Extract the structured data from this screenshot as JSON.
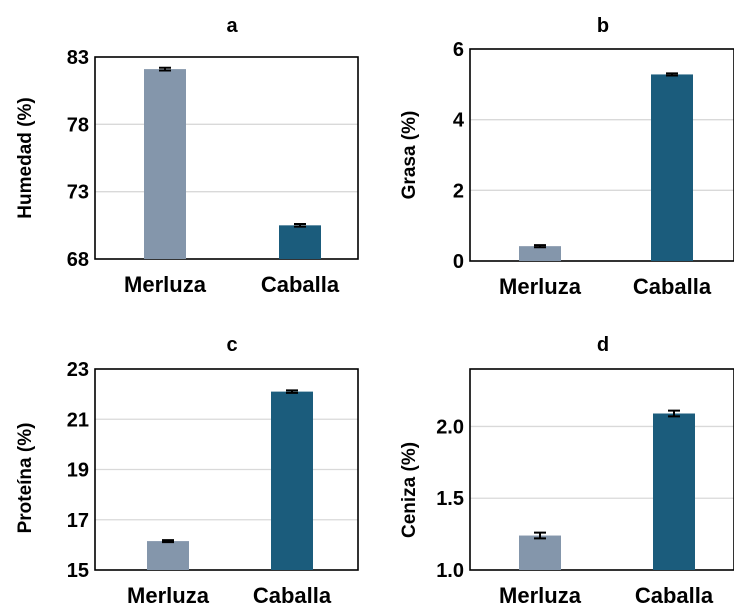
{
  "chart_data": [
    {
      "panel": "a",
      "type": "bar",
      "title": "a",
      "ylabel": "Humedad (%)",
      "xlabel": "",
      "categories": [
        "Merluza",
        "Caballa"
      ],
      "values": [
        82.1,
        70.5
      ],
      "errors": [
        0.1,
        0.1
      ],
      "ylim": [
        68,
        83
      ],
      "yticks": [
        68,
        73,
        78,
        83
      ],
      "ytick_labels": [
        "68",
        "73",
        "78",
        "83"
      ],
      "colors": [
        "#8496ab",
        "#1b5c7c"
      ],
      "grid": true
    },
    {
      "panel": "b",
      "type": "bar",
      "title": "b",
      "ylabel": "Grasa (%)",
      "xlabel": "",
      "categories": [
        "Merluza",
        "Caballa"
      ],
      "values": [
        0.42,
        5.28
      ],
      "errors": [
        0.03,
        0.03
      ],
      "ylim": [
        0,
        6
      ],
      "yticks": [
        0,
        2,
        4,
        6
      ],
      "ytick_labels": [
        "0",
        "2",
        "4",
        "6"
      ],
      "colors": [
        "#8496ab",
        "#1b5c7c"
      ],
      "grid": true
    },
    {
      "panel": "c",
      "type": "bar",
      "title": "c",
      "ylabel": "Proteína (%)",
      "xlabel": "",
      "categories": [
        "Merluza",
        "Caballa"
      ],
      "values": [
        16.15,
        22.1
      ],
      "errors": [
        0.04,
        0.05
      ],
      "ylim": [
        15,
        23
      ],
      "yticks": [
        15,
        17,
        19,
        21,
        23
      ],
      "ytick_labels": [
        "15",
        "17",
        "19",
        "21",
        "23"
      ],
      "colors": [
        "#8496ab",
        "#1b5c7c"
      ],
      "grid": true
    },
    {
      "panel": "d",
      "type": "bar",
      "title": "d",
      "ylabel": "Ceniza (%)",
      "xlabel": "",
      "categories": [
        "Merluza",
        "Caballa"
      ],
      "values": [
        1.24,
        2.09
      ],
      "errors": [
        0.02,
        0.02
      ],
      "ylim": [
        1.0,
        2.4
      ],
      "yticks": [
        1.0,
        1.5,
        2.0
      ],
      "ytick_labels": [
        "1.0",
        "1.5",
        "2.0"
      ],
      "colors": [
        "#8496ab",
        "#1b5c7c"
      ],
      "grid": true
    }
  ]
}
